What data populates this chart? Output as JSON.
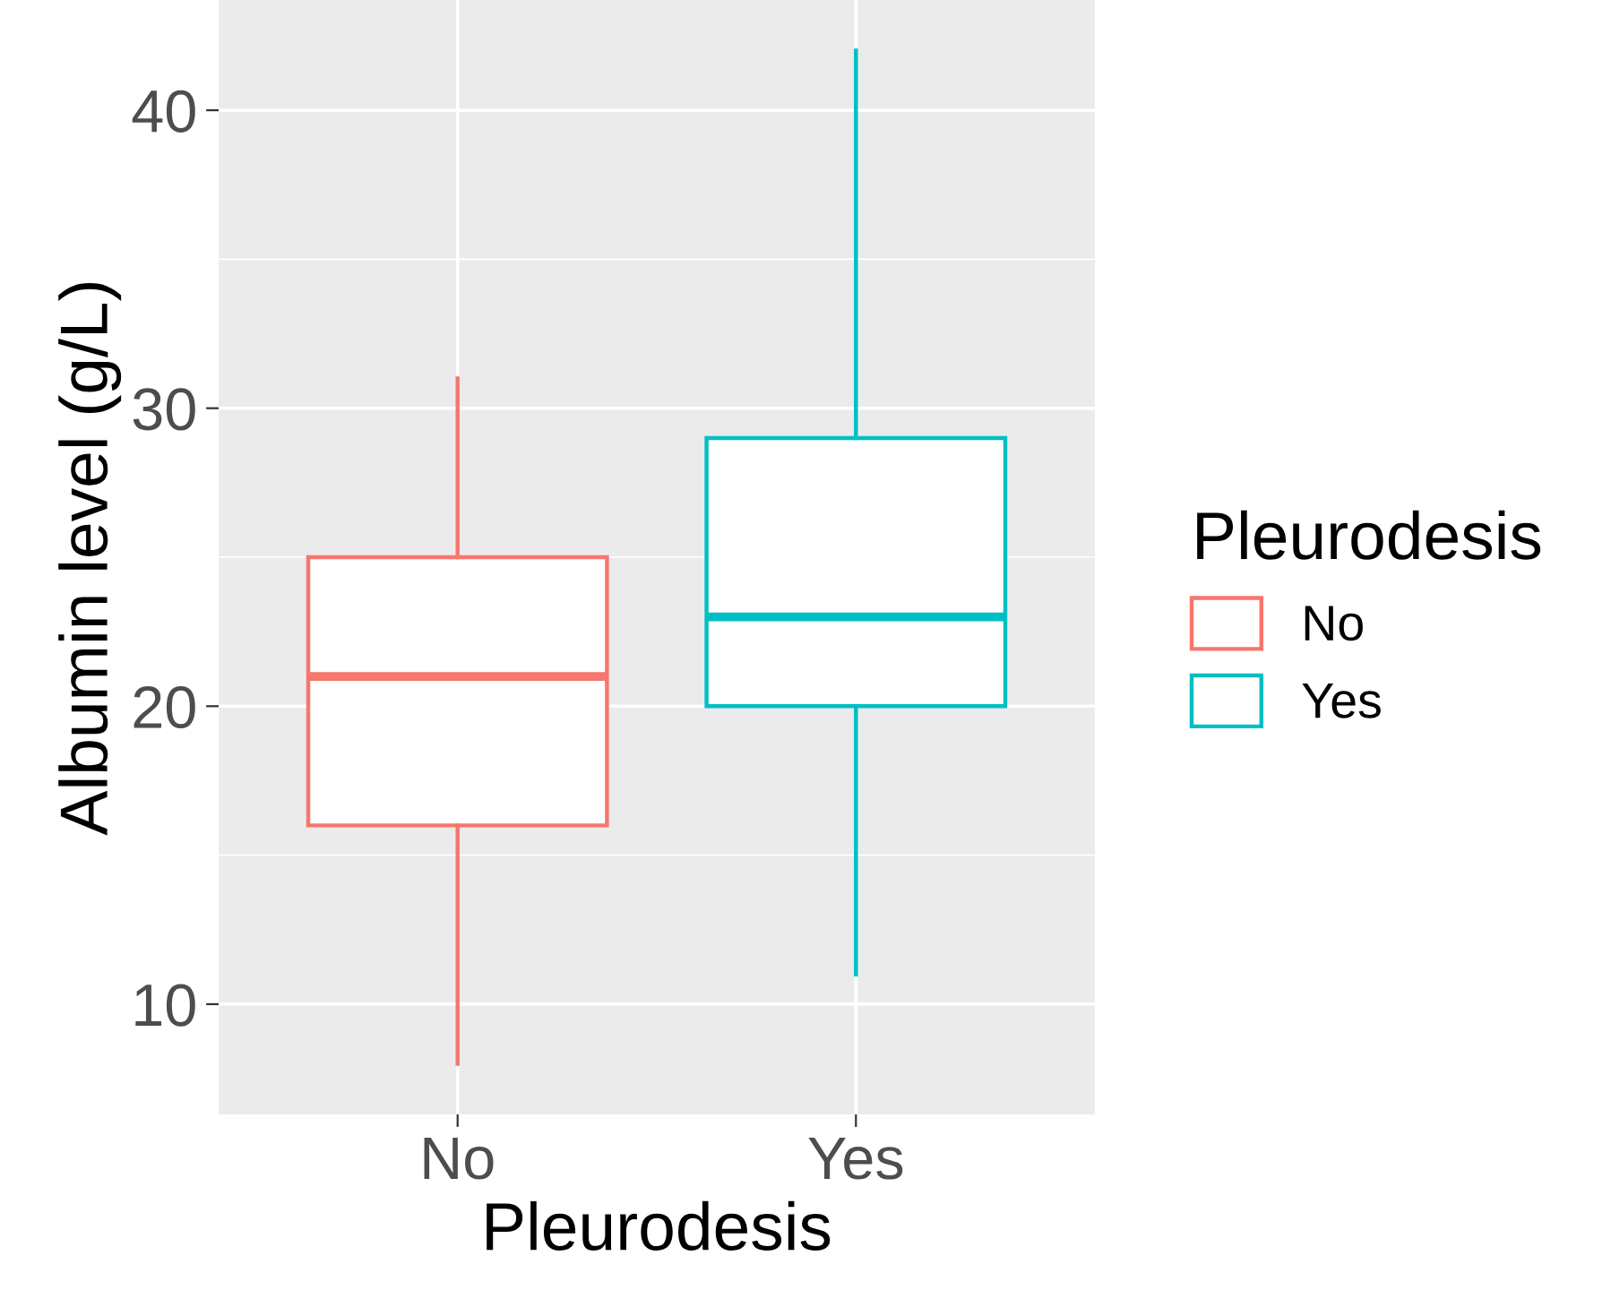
{
  "chart_data": {
    "type": "box",
    "xlabel": "Pleurodesis",
    "ylabel": "Albumin level (g/L)",
    "legend_title": "Pleurodesis",
    "categories": [
      "No",
      "Yes"
    ],
    "series": [
      {
        "name": "No",
        "color": "#f8766d",
        "boxes": [
          {
            "low": 8,
            "q1": 16,
            "median": 21,
            "q3": 25,
            "high": 31
          },
          null
        ]
      },
      {
        "name": "Yes",
        "color": "#00bfc4",
        "boxes": [
          null,
          {
            "low": 11,
            "q1": 20,
            "median": 23,
            "q3": 29,
            "high": 42
          }
        ]
      }
    ],
    "ylim": [
      6.3,
      43.7
    ],
    "yticks": [
      10,
      20,
      30,
      40
    ],
    "grid": true,
    "legend": "right"
  }
}
